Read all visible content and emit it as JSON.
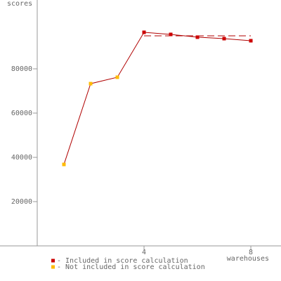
{
  "chart_data": {
    "type": "line",
    "y_label": "scores",
    "x_label": "warehouses",
    "xlim": [
      0,
      9.13
    ],
    "ylim": [
      0,
      111100
    ],
    "xticks": [
      4,
      8
    ],
    "yticks": [
      20000,
      40000,
      60000,
      80000
    ],
    "line_color": "#b00000",
    "series": [
      {
        "name": "- Included in score calculation",
        "color": "#cc0000",
        "x": [
          4,
          5,
          6,
          7,
          8
        ],
        "values": [
          96500,
          95550,
          94300,
          93650,
          92700
        ]
      },
      {
        "name": "- Not included in score calculation",
        "color": "#ffbb00",
        "x": [
          1,
          2,
          3
        ],
        "values": [
          36800,
          73300,
          76200
        ]
      }
    ],
    "score_line": {
      "x": [
        4,
        8
      ],
      "value": 94900
    }
  }
}
